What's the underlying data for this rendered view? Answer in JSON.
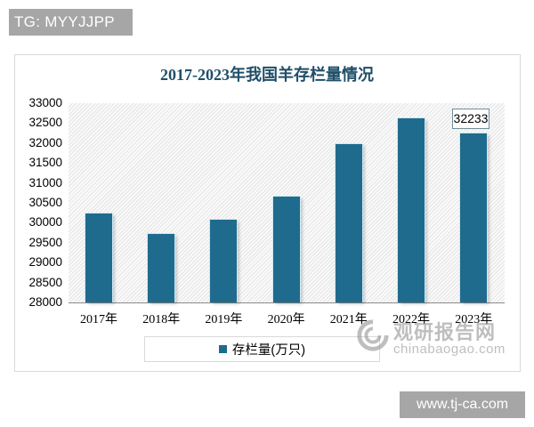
{
  "watermarks": {
    "top_left": "TG: MYYJJPP",
    "bottom_right": "www.tj-ca.com",
    "logo_cn": "观研报告网",
    "logo_en": "chinabaogao.com"
  },
  "chart_data": {
    "type": "bar",
    "title": "2017-2023年我国羊存栏量情况",
    "xlabel": "",
    "ylabel": "",
    "categories": [
      "2017年",
      "2018年",
      "2019年",
      "2020年",
      "2021年",
      "2022年",
      "2023年"
    ],
    "series": [
      {
        "name": "存栏量(万只)",
        "color": "#1f6b8e",
        "values": [
          30232,
          29714,
          30072,
          30655,
          31969,
          32627,
          32233
        ]
      }
    ],
    "data_labels": [
      {
        "category": "2023年",
        "text": "32233"
      }
    ],
    "ylim": [
      28000,
      33000
    ],
    "yticks": [
      "33000",
      "32500",
      "32000",
      "31500",
      "31000",
      "30500",
      "30000",
      "29500",
      "29000",
      "28500",
      "28000"
    ],
    "grid": false,
    "legend_position": "bottom"
  }
}
